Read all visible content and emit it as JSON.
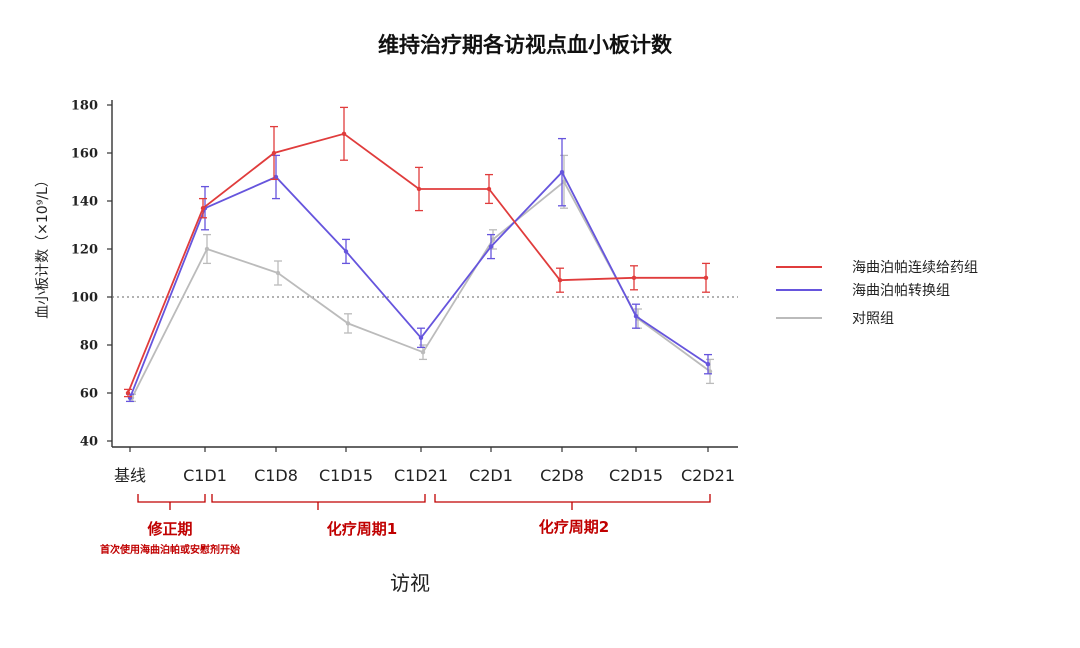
{
  "chart_data": {
    "type": "line",
    "title": "维持治疗期各访视点血小板计数",
    "xlabel": "访视",
    "ylabel": "血小板计数（×10⁹/L）",
    "categories": [
      "基线",
      "C1D1",
      "C1D8",
      "C1D15",
      "C1D21",
      "C2D1",
      "C2D8",
      "C2D15",
      "C2D21"
    ],
    "ylim": [
      40,
      180
    ],
    "yticks": [
      40,
      60,
      80,
      100,
      120,
      140,
      160,
      180
    ],
    "reference_line": 100,
    "legend_position": "right",
    "series": [
      {
        "name": "海曲泊帕连续给药组",
        "color": "#e03c3c",
        "values": [
          60,
          137,
          160,
          168,
          145,
          145,
          107,
          108,
          108
        ],
        "errors": [
          1.5,
          4,
          11,
          11,
          9,
          6,
          5,
          5,
          6
        ]
      },
      {
        "name": "海曲泊帕转换组",
        "color": "#6655dd",
        "values": [
          58,
          137,
          150,
          119,
          83,
          121,
          152,
          92,
          72
        ],
        "errors": [
          1.5,
          9,
          9,
          5,
          4,
          5,
          14,
          5,
          4
        ]
      },
      {
        "name": "对照组",
        "color": "#bbbbbb",
        "values": [
          58,
          120,
          110,
          89,
          77,
          124,
          148,
          91,
          69
        ],
        "errors": [
          1.5,
          6,
          5,
          4,
          3,
          4,
          11,
          4,
          5
        ]
      }
    ],
    "annotations": {
      "phase1": {
        "label": "修正期",
        "note": "首次使用海曲泊帕或安慰剂开始"
      },
      "phase2": {
        "label": "化疗周期1"
      },
      "phase3": {
        "label": "化疗周期2"
      }
    }
  }
}
